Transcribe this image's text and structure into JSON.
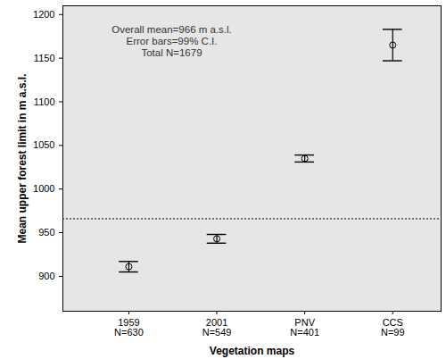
{
  "chart_data": {
    "type": "errorbar",
    "x_label": "Vegetation maps",
    "y_label": "Mean upper forest limit in m a.s.l.",
    "categories": [
      "1959",
      "2001",
      "PNV",
      "CCS"
    ],
    "n_labels": [
      "N=630",
      "N=549",
      "N=401",
      "N=99"
    ],
    "values": [
      911,
      943,
      1035,
      1165
    ],
    "error_low": [
      905,
      938,
      1031,
      1147
    ],
    "error_high": [
      917,
      948,
      1039,
      1183
    ],
    "reference_line": 966,
    "annotations": [
      "Overall mean=966 m a.s.l.",
      "Error bars=99% C.I.",
      "Total N=1679"
    ],
    "ylim": [
      860,
      1210
    ],
    "yticks": [
      900,
      950,
      1000,
      1050,
      1100,
      1150,
      1200
    ],
    "grid": false,
    "marker": "open-circle",
    "color": "#000000"
  }
}
